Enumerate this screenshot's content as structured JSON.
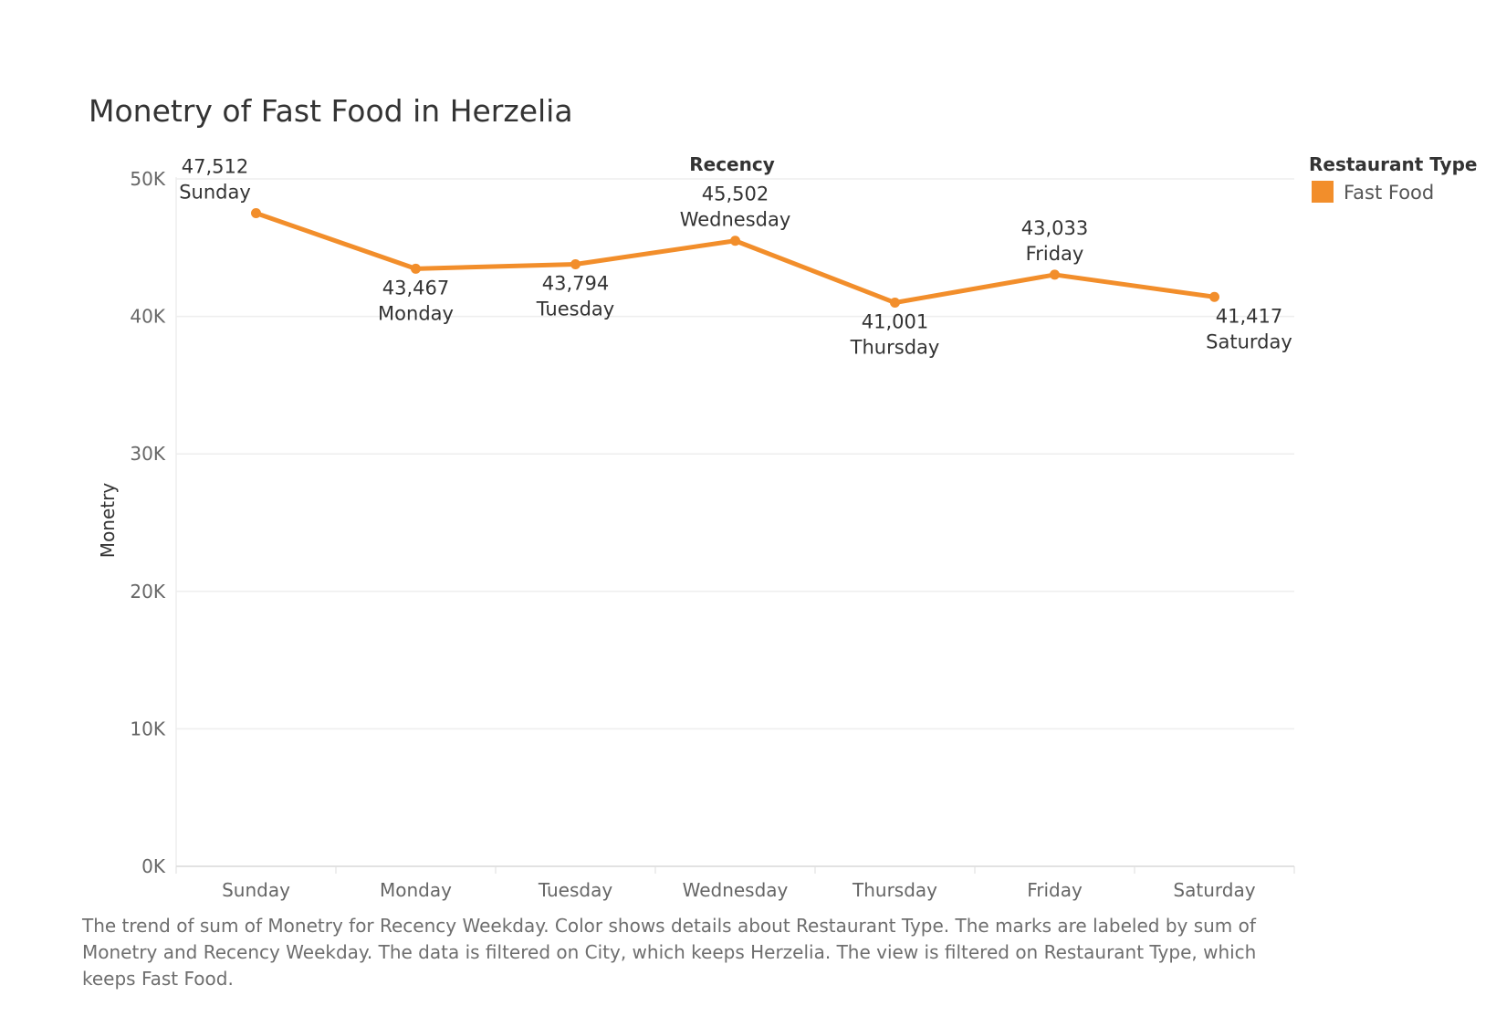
{
  "chart_data": {
    "type": "line",
    "title": "Monetry of Fast Food in Herzelia",
    "top_axis_title": "Recency",
    "ylabel": "Monetry",
    "ylim": [
      0,
      50000
    ],
    "yticks": [
      {
        "value": 50000,
        "label": "50K"
      },
      {
        "value": 40000,
        "label": "40K"
      },
      {
        "value": 30000,
        "label": "30K"
      },
      {
        "value": 20000,
        "label": "20K"
      },
      {
        "value": 10000,
        "label": "10K"
      },
      {
        "value": 0,
        "label": "0K"
      }
    ],
    "categories": [
      "Sunday",
      "Monday",
      "Tuesday",
      "Wednesday",
      "Thursday",
      "Friday",
      "Saturday"
    ],
    "series": [
      {
        "name": "Fast Food",
        "color": "#f28e2b",
        "values": [
          47512,
          43467,
          43794,
          45502,
          41001,
          43033,
          41417
        ],
        "value_labels": [
          "47,512",
          "43,467",
          "43,794",
          "45,502",
          "41,001",
          "43,033",
          "41,417"
        ]
      }
    ],
    "grid": true,
    "legend": {
      "title": "Restaurant Type",
      "position": "top-right",
      "items": [
        {
          "label": "Fast Food",
          "color": "#f28e2b"
        }
      ]
    }
  },
  "caption": "The trend of sum of Monetry for Recency Weekday.  Color shows details about Restaurant Type.  The marks are labeled by sum of Monetry and Recency Weekday. The data is filtered on City, which keeps Herzelia. The view is filtered on Restaurant Type, which keeps Fast Food."
}
